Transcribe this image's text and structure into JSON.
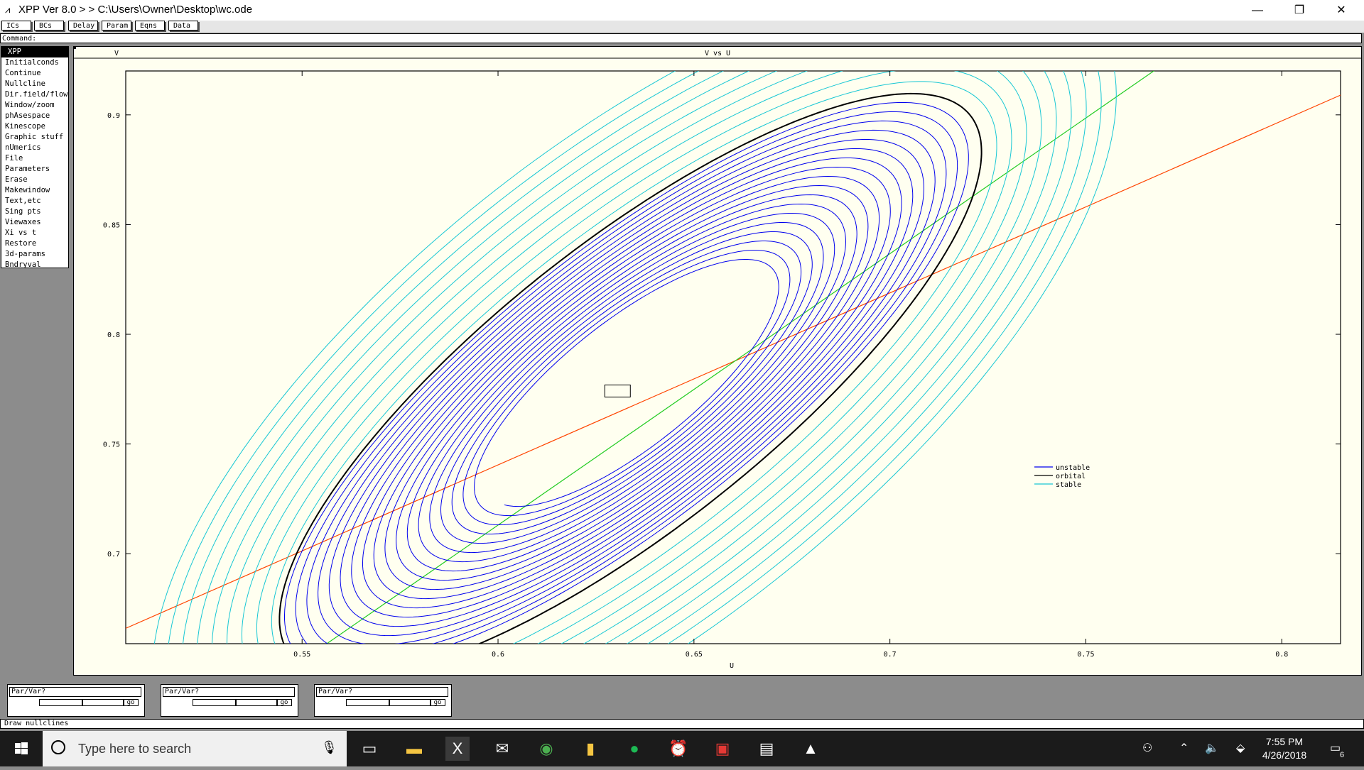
{
  "window": {
    "title": "XPP Ver 8.0 > > C:\\Users\\Owner\\Desktop\\wc.ode",
    "minimize": "—",
    "restore": "❐",
    "close": "✕"
  },
  "toolbar": {
    "buttons": [
      "ICs",
      "BCs",
      "Delay",
      "Param",
      "Eqns",
      "Data"
    ]
  },
  "command": {
    "label": "Command:"
  },
  "menu": {
    "items": [
      "XPP",
      "Initialconds",
      "Continue",
      "Nullcline",
      "Dir.field/flow",
      "Window/zoom",
      "phAsespace",
      "Kinescope",
      "Graphic stuff",
      "nUmerics",
      "File",
      "Parameters",
      "Erase",
      "Makewindow",
      "Text,etc",
      "Sing pts",
      "Viewaxes",
      "Xi vs t",
      "Restore",
      "3d-params",
      "Bndryval"
    ]
  },
  "graph": {
    "corner_label": "V",
    "title": "V vs U",
    "xlabel": "U"
  },
  "chart_data": {
    "type": "line",
    "title": "V vs U",
    "xlabel": "U",
    "ylabel": "V",
    "xlim": [
      0.505,
      0.815
    ],
    "ylim": [
      0.659,
      0.92
    ],
    "xticks": [
      0.55,
      0.6,
      0.65,
      0.7,
      0.75,
      0.8
    ],
    "xtick_labels": [
      "0.55",
      "0.6",
      "0.65",
      "0.7",
      "0.75",
      "0.8"
    ],
    "yticks": [
      0.7,
      0.75,
      0.8,
      0.85,
      0.9
    ],
    "ytick_labels": [
      "0.7",
      "0.75",
      "0.8",
      "0.85",
      "0.9"
    ],
    "grid": false,
    "legend_position": "right",
    "fixed_point": [
      0.6305,
      0.774
    ],
    "nullclines": [
      {
        "color": "#ff4500",
        "x": [
          0.505,
          0.815
        ],
        "y": [
          0.666,
          0.909
        ]
      },
      {
        "color": "#22cc22",
        "x": [
          0.5555,
          0.7675
        ],
        "y": [
          0.658,
          0.9202
        ]
      }
    ],
    "series": [
      {
        "name": "unstable",
        "color": "#0000ee",
        "center": [
          0.6335,
          0.7768
        ],
        "angle_deg": 38.5,
        "a_start": 0.0455,
        "a_end": 0.1092,
        "b_start": 0.0158,
        "b_end": 0.0352,
        "turns": 18
      },
      {
        "name": "orbital",
        "color": "#000000",
        "center": [
          0.6338,
          0.7767
        ],
        "angle_deg": 38.5,
        "a": 0.1108,
        "b": 0.0361
      },
      {
        "name": "stable",
        "color": "#17c7d4",
        "center": [
          0.6338,
          0.7767
        ],
        "angle_deg": 38.5,
        "a_start": 0.1525,
        "a_end": 0.1128,
        "b_start": 0.0625,
        "b_end": 0.0372,
        "turns": 9
      }
    ],
    "legend": [
      "unstable",
      "orbital",
      "stable"
    ]
  },
  "sliders": [
    {
      "label": "Par/Var?",
      "go": "go",
      "position": 0.5
    },
    {
      "label": "Par/Var?",
      "go": "go",
      "position": 0.5
    },
    {
      "label": "Par/Var?",
      "go": "go",
      "position": 0.5
    }
  ],
  "status": {
    "text": "Draw nullclines"
  },
  "taskbar": {
    "search_placeholder": "Type here to search",
    "time": "7:55 PM",
    "date": "4/26/2018",
    "notification_count": "6",
    "apps": [
      "task-view-icon",
      "file-explorer-icon",
      "xpp-icon",
      "mail-icon",
      "chrome-icon",
      "files-icon",
      "spotify-icon",
      "alarm-icon",
      "acrobat-icon",
      "terminal-icon",
      "photos-icon"
    ]
  }
}
